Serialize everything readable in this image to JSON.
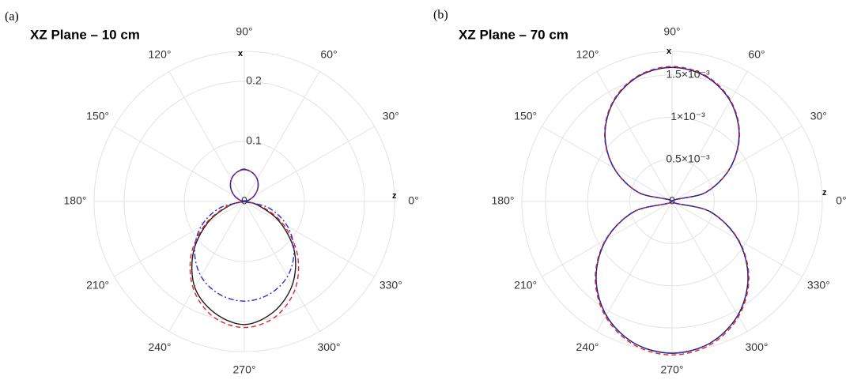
{
  "chart_data": [
    {
      "type": "polar",
      "panel": "(a)",
      "title": "XZ Plane – 10 cm",
      "x_axis_label": "x",
      "z_axis_label": "z",
      "rlim": [
        0,
        0.25
      ],
      "rticks": [
        0,
        0.1,
        0.2
      ],
      "grid": true,
      "theta": [
        0,
        15,
        30,
        45,
        60,
        75,
        90,
        105,
        120,
        135,
        150,
        165,
        180,
        195,
        210,
        225,
        240,
        255,
        270,
        285,
        300,
        315,
        330,
        345
      ],
      "thetaticks": [
        {
          "value": 0,
          "label": "0°"
        },
        {
          "value": 30,
          "label": "30°"
        },
        {
          "value": 60,
          "label": "60°"
        },
        {
          "value": 90,
          "label": "90°"
        },
        {
          "value": 120,
          "label": "120°"
        },
        {
          "value": 150,
          "label": "150°"
        },
        {
          "value": 180,
          "label": "180°"
        },
        {
          "value": 210,
          "label": "210°"
        },
        {
          "value": 240,
          "label": "240°"
        },
        {
          "value": 270,
          "label": "270°"
        },
        {
          "value": 300,
          "label": "300°"
        },
        {
          "value": 330,
          "label": "330°"
        }
      ],
      "series": [
        {
          "color": "#1a1a1a",
          "line_style": "solid",
          "values": [
            0,
            0.007,
            0.019,
            0.032,
            0.043,
            0.05,
            0.053,
            0.05,
            0.043,
            0.032,
            0.019,
            0.007,
            0,
            0.025,
            0.07,
            0.12,
            0.165,
            0.192,
            0.205,
            0.19,
            0.16,
            0.118,
            0.068,
            0.023
          ]
        },
        {
          "color": "#e8202a",
          "line_style": "dashed",
          "values": [
            0,
            0.007,
            0.019,
            0.032,
            0.043,
            0.05,
            0.053,
            0.05,
            0.043,
            0.032,
            0.019,
            0.007,
            0,
            0.028,
            0.074,
            0.125,
            0.169,
            0.199,
            0.21,
            0.199,
            0.169,
            0.125,
            0.074,
            0.028
          ]
        },
        {
          "color": "#2b2bd6",
          "line_style": "dashdot",
          "values": [
            0,
            0.007,
            0.019,
            0.032,
            0.043,
            0.05,
            0.054,
            0.05,
            0.043,
            0.032,
            0.019,
            0.007,
            0,
            0.043,
            0.083,
            0.117,
            0.144,
            0.16,
            0.166,
            0.16,
            0.144,
            0.117,
            0.083,
            0.043
          ]
        }
      ]
    },
    {
      "type": "polar",
      "panel": "(b)",
      "title": "XZ Plane – 70 cm",
      "x_axis_label": "x",
      "z_axis_label": "z",
      "rlim": [
        0,
        0.00178
      ],
      "rticks": [
        0,
        {
          "value": 0.0005,
          "label": "0.5×10⁻³"
        },
        {
          "value": 0.001,
          "label": "1×10⁻³"
        },
        {
          "value": 0.0015,
          "label": "1.5×10⁻³"
        }
      ],
      "grid": true,
      "theta": [
        0,
        15,
        30,
        45,
        60,
        75,
        90,
        105,
        120,
        135,
        150,
        165,
        180,
        195,
        210,
        225,
        240,
        255,
        270,
        285,
        300,
        315,
        330,
        345
      ],
      "thetaticks": [
        {
          "value": 0,
          "label": "0°"
        },
        {
          "value": 30,
          "label": "30°"
        },
        {
          "value": 60,
          "label": "60°"
        },
        {
          "value": 90,
          "label": "90°"
        },
        {
          "value": 120,
          "label": "120°"
        },
        {
          "value": 150,
          "label": "150°"
        },
        {
          "value": 180,
          "label": "180°"
        },
        {
          "value": 210,
          "label": "210°"
        },
        {
          "value": 240,
          "label": "240°"
        },
        {
          "value": 270,
          "label": "270°"
        },
        {
          "value": 300,
          "label": "300°"
        },
        {
          "value": 330,
          "label": "330°"
        }
      ],
      "series": [
        {
          "color": "#1a1a1a",
          "line_style": "solid",
          "values": [
            0,
            0.000412,
            0.000795,
            0.001124,
            0.001377,
            0.001536,
            0.00159,
            0.001536,
            0.001377,
            0.001124,
            0.000795,
            0.000412,
            0,
            0.000466,
            0.0009,
            0.001273,
            0.001559,
            0.001739,
            0.0018,
            0.001739,
            0.001559,
            0.001273,
            0.0009,
            0.000466
          ]
        },
        {
          "color": "#e8202a",
          "line_style": "dashed",
          "values": [
            0,
            0.000414,
            0.0008,
            0.001131,
            0.001386,
            0.001545,
            0.0016,
            0.001545,
            0.001386,
            0.001131,
            0.0008,
            0.000414,
            0,
            0.000471,
            0.00091,
            0.001287,
            0.001576,
            0.001758,
            0.00182,
            0.001758,
            0.001576,
            0.001287,
            0.00091,
            0.000471
          ]
        },
        {
          "color": "#2b2bd6",
          "line_style": "dashdot",
          "values": [
            0,
            0.000412,
            0.000795,
            0.001124,
            0.001377,
            0.001536,
            0.00159,
            0.001536,
            0.001377,
            0.001124,
            0.000795,
            0.000412,
            0,
            0.000466,
            0.0009,
            0.001273,
            0.001559,
            0.001739,
            0.0018,
            0.001739,
            0.001559,
            0.001273,
            0.0009,
            0.000466
          ]
        }
      ]
    }
  ]
}
